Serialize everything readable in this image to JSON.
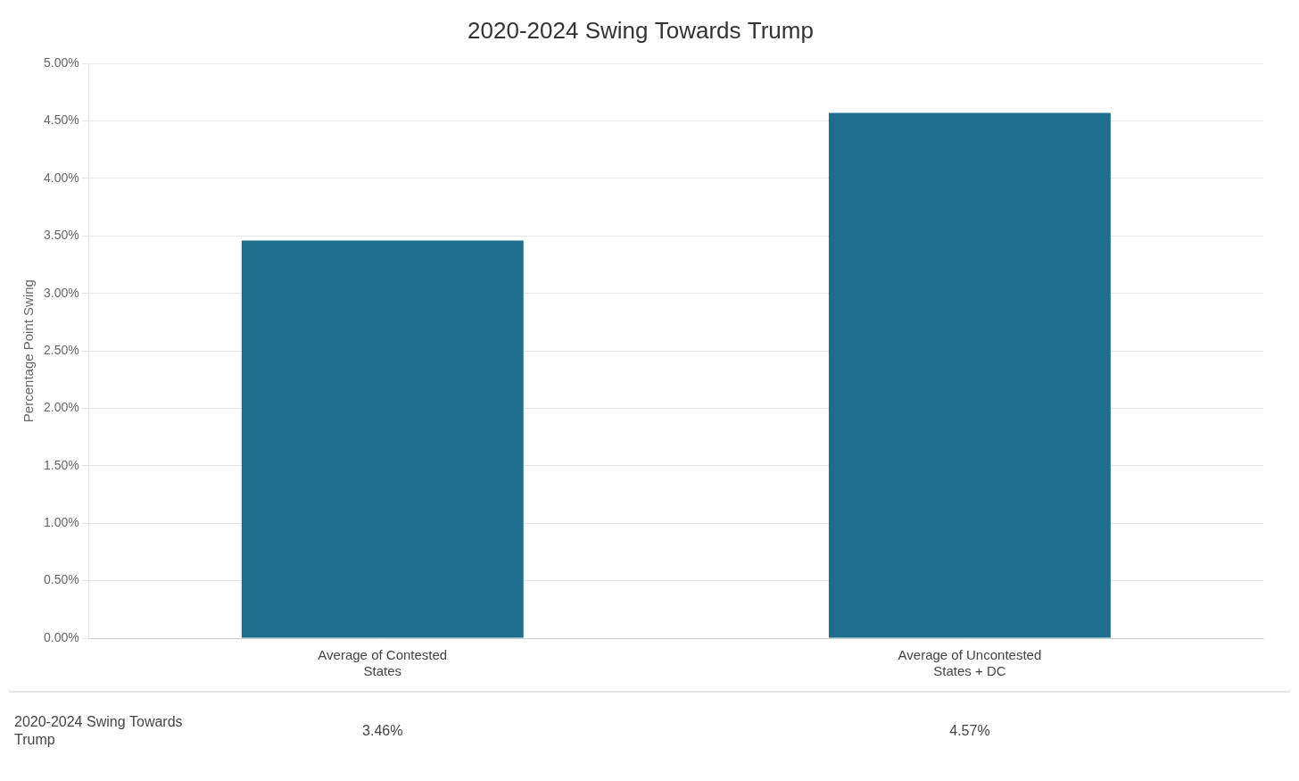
{
  "chart_data": {
    "type": "bar",
    "title": "2020-2024 Swing Towards Trump",
    "categories": [
      "Average of Contested\nStates",
      "Average of Uncontested\nStates + DC"
    ],
    "values": [
      0.0346,
      0.0457
    ],
    "value_labels": [
      "3.46%",
      "4.57%"
    ],
    "data_labels": true,
    "color": "#1e6f8e",
    "y_label": "Percentage Point Swing",
    "ylim": [
      0,
      0.05
    ],
    "yticks": [
      {
        "value": 0.0,
        "label": "0.00%"
      },
      {
        "value": 0.005,
        "label": "0.50%"
      },
      {
        "value": 0.01,
        "label": "1.00%"
      },
      {
        "value": 0.015,
        "label": "1.50%"
      },
      {
        "value": 0.02,
        "label": "2.00%"
      },
      {
        "value": 0.025,
        "label": "2.50%"
      },
      {
        "value": 0.03,
        "label": "3.00%"
      },
      {
        "value": 0.035,
        "label": "3.50%"
      },
      {
        "value": 0.04,
        "label": "4.00%"
      },
      {
        "value": 0.045,
        "label": "4.50%"
      },
      {
        "value": 0.05,
        "label": "5.00%"
      }
    ],
    "grid": true,
    "annotations": [
      "2020-2024 Swing Towards\nTrump"
    ]
  }
}
